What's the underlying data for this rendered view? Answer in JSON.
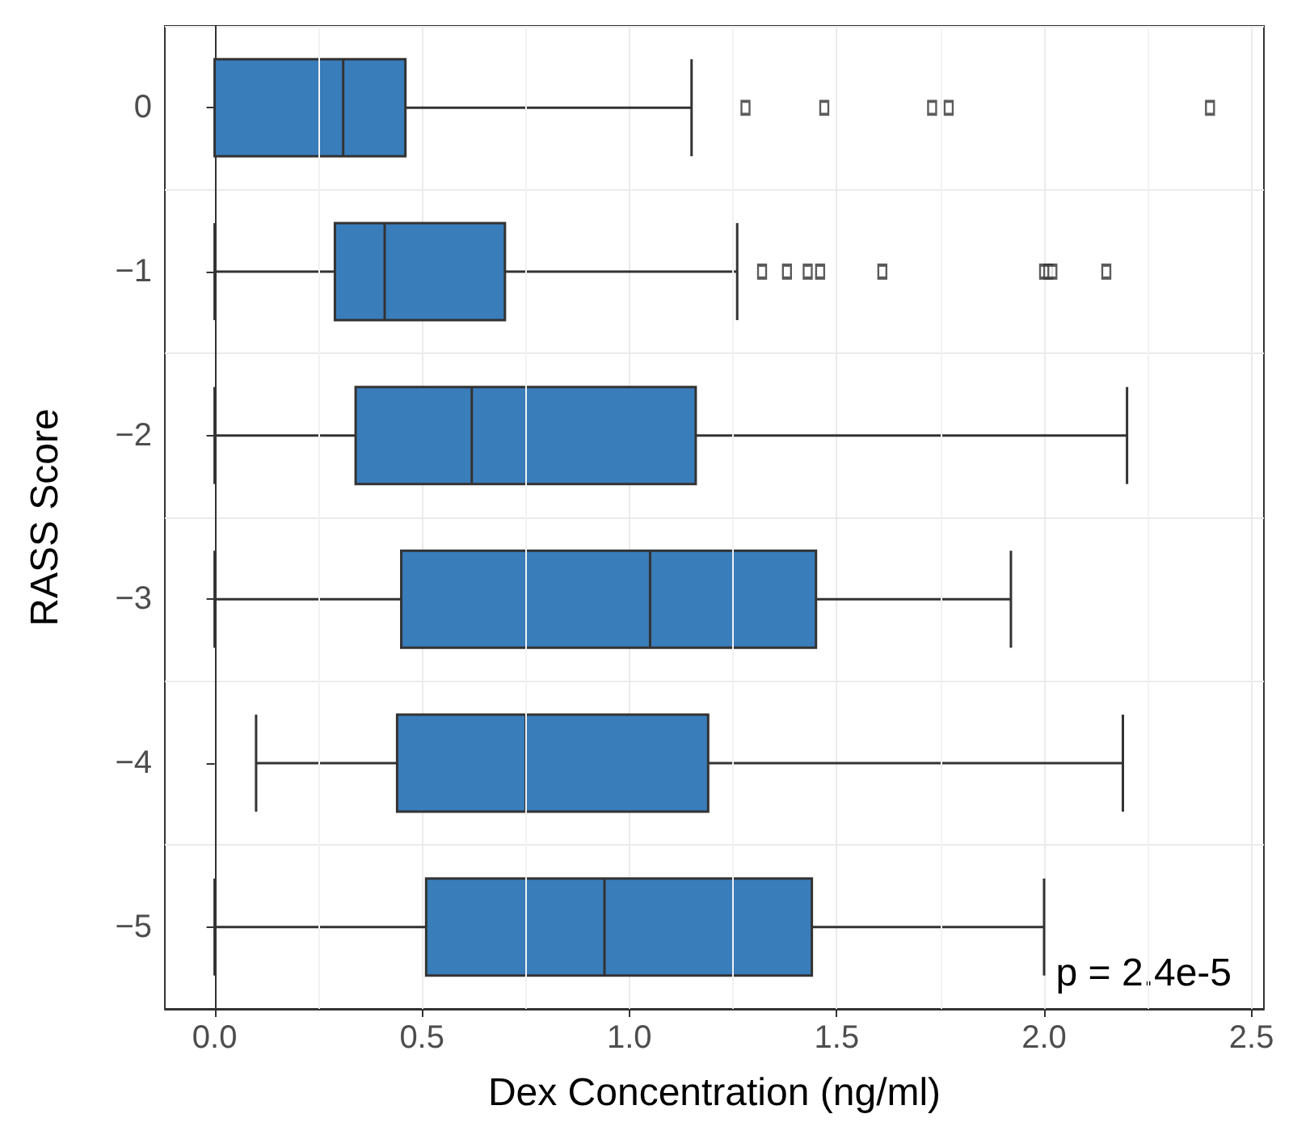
{
  "chart_data": {
    "type": "box",
    "orientation": "horizontal",
    "xlabel": "Dex Concentration (ng/ml)",
    "ylabel": "RASS Score",
    "categories": [
      "0",
      "−1",
      "−2",
      "−3",
      "−4",
      "−5"
    ],
    "color": "#3a7dbb",
    "boxes": [
      {
        "low": 0,
        "q1": 0,
        "median": 0.31,
        "q3": 0.46,
        "high": 1.15,
        "outliers": [
          1.28,
          1.47,
          1.73,
          1.77,
          2.4
        ]
      },
      {
        "low": 0,
        "q1": 0.29,
        "median": 0.41,
        "q3": 0.7,
        "high": 1.26,
        "outliers": [
          1.32,
          1.38,
          1.43,
          1.46,
          1.61,
          2.0,
          2.01,
          2.02,
          2.15
        ]
      },
      {
        "low": 0,
        "q1": 0.34,
        "median": 0.62,
        "q3": 1.16,
        "high": 2.2
      },
      {
        "low": 0,
        "q1": 0.45,
        "median": 1.05,
        "q3": 1.45,
        "high": 1.92
      },
      {
        "low": 0.1,
        "q1": 0.44,
        "median": 0.75,
        "q3": 1.19,
        "high": 2.19
      },
      {
        "low": 0,
        "q1": 0.51,
        "median": 0.94,
        "q3": 1.44,
        "high": 2.0
      }
    ],
    "xlim": [
      -0.12,
      2.53
    ],
    "xticks": [
      {
        "value": 0,
        "label": "0.0"
      },
      {
        "value": 0.5,
        "label": "0.5"
      },
      {
        "value": 1,
        "label": "1.0"
      },
      {
        "value": 1.5,
        "label": "1.5"
      },
      {
        "value": 2,
        "label": "2.0"
      },
      {
        "value": 2.5,
        "label": "2.5"
      }
    ],
    "grid": true,
    "marker": "square",
    "annotations": [
      "p = 2.4e-5"
    ]
  }
}
